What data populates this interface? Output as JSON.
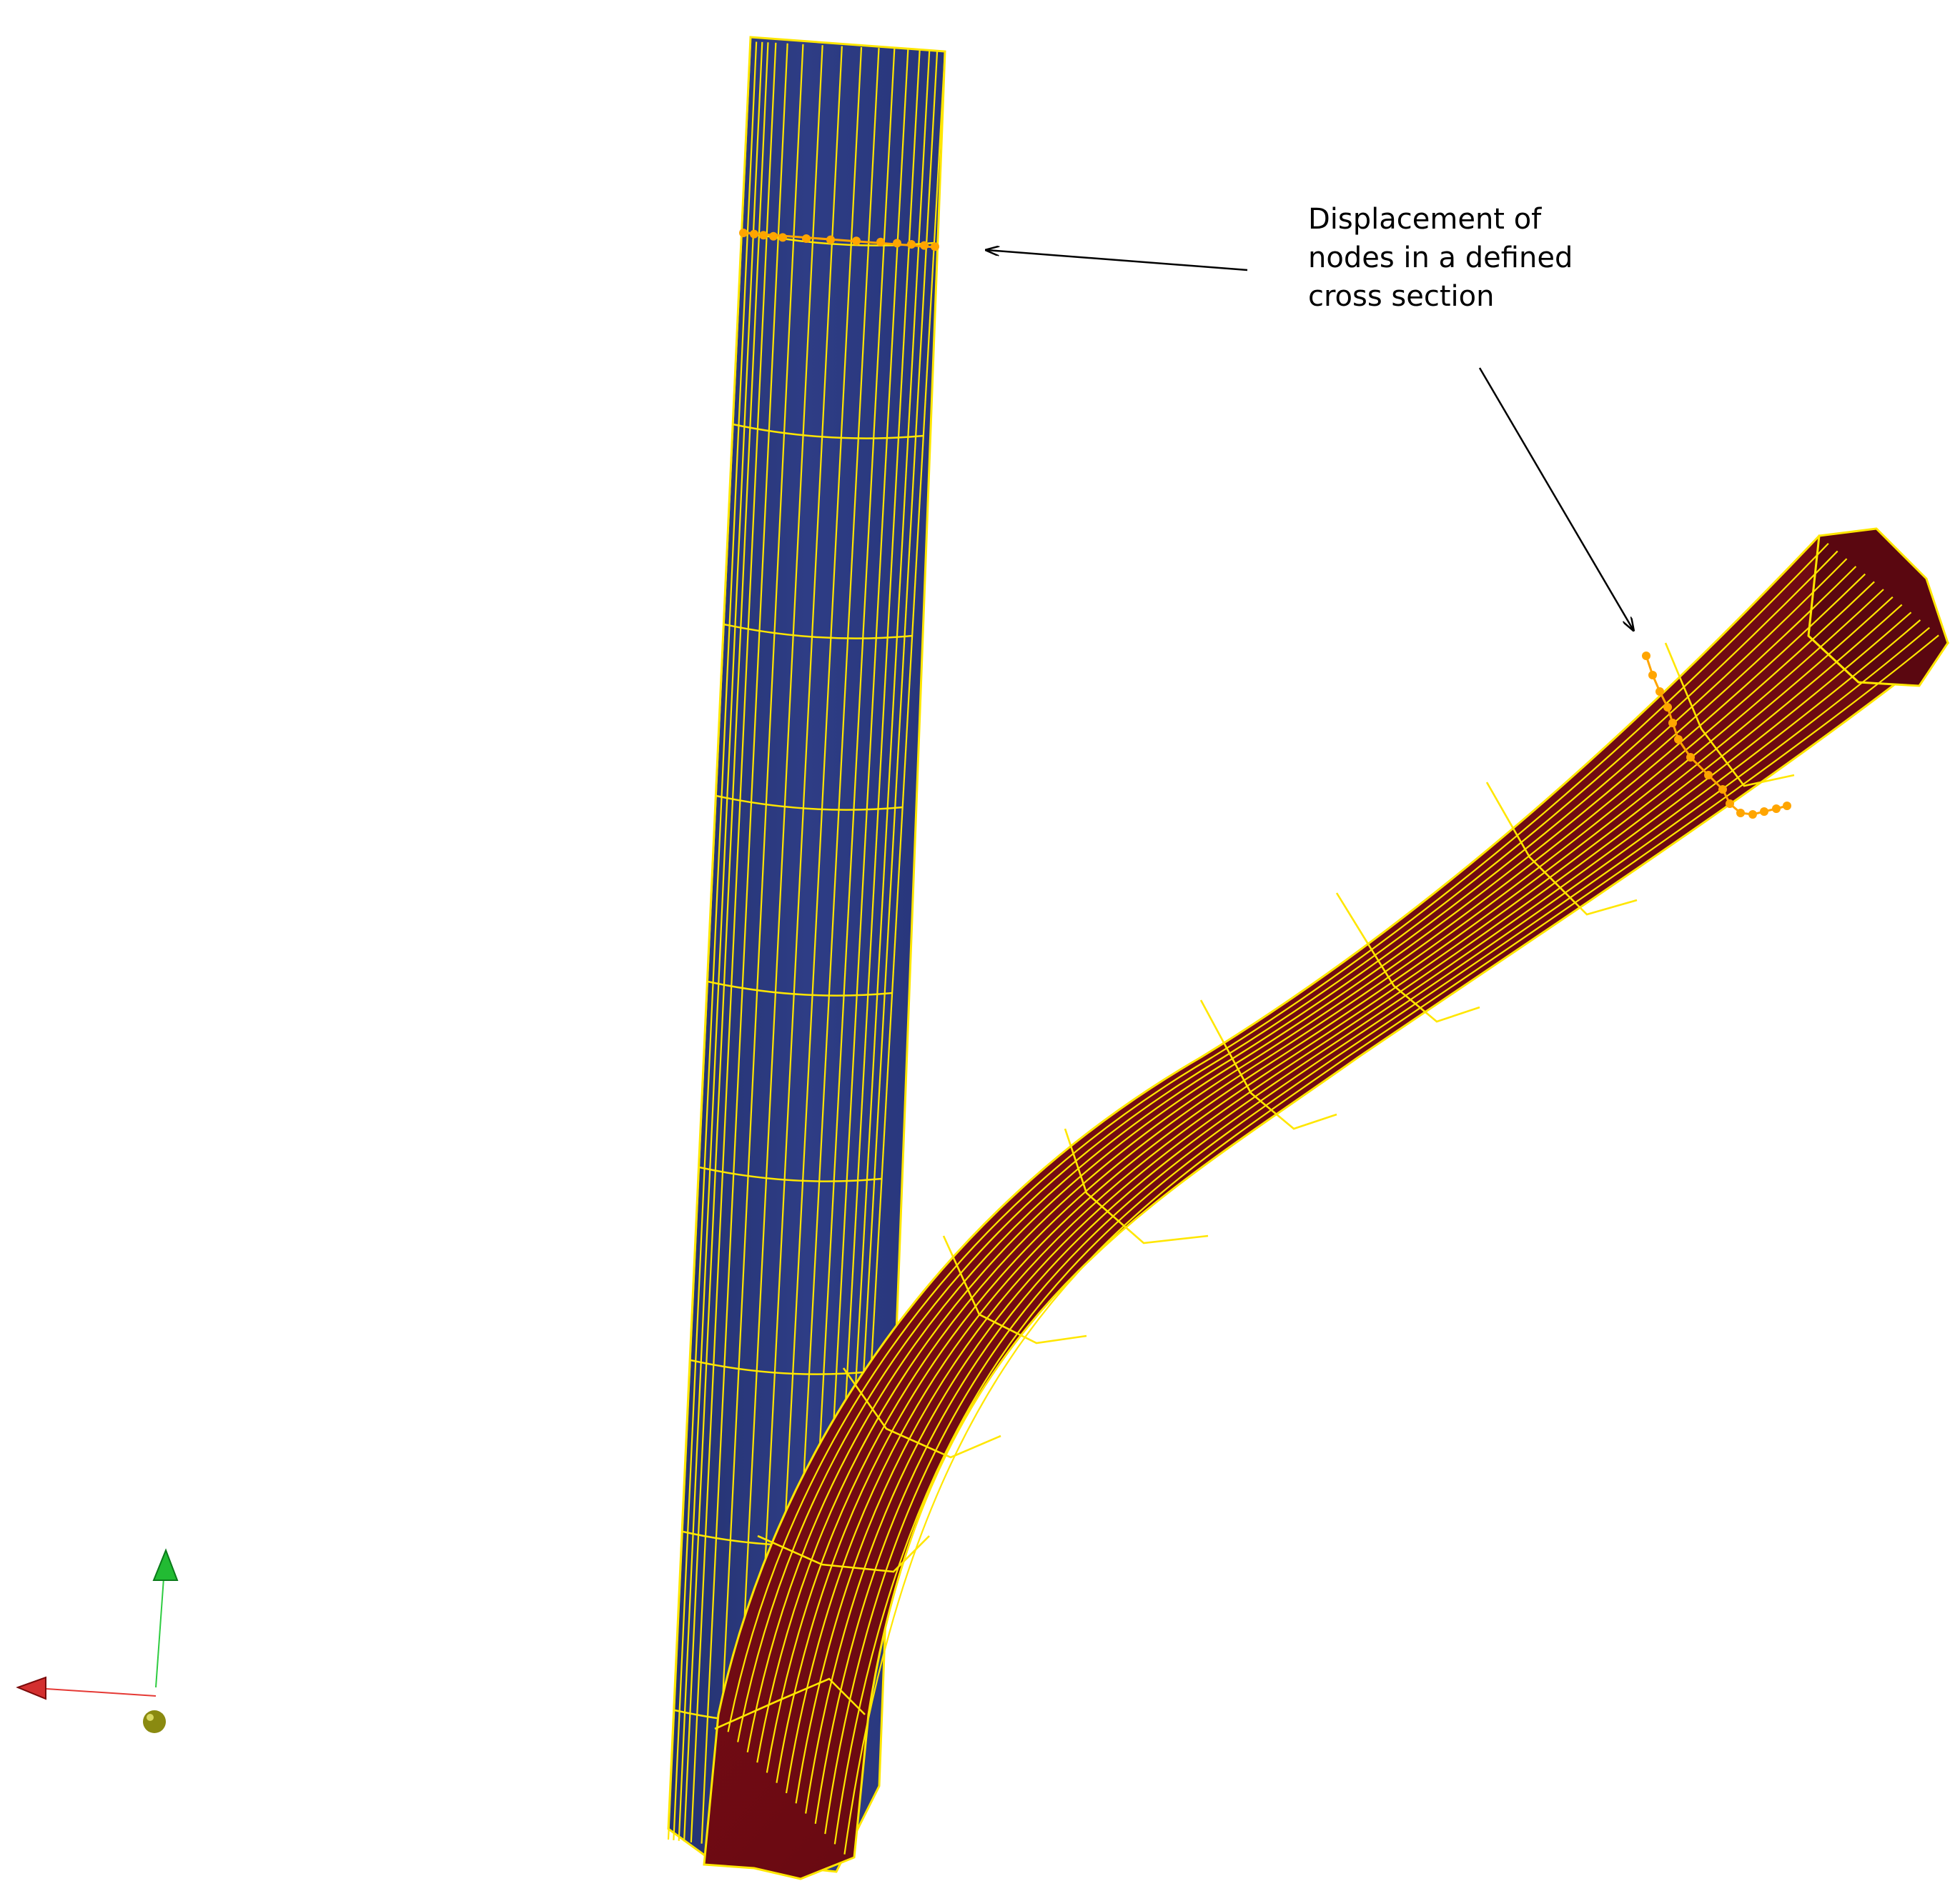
{
  "annotation": {
    "lines": [
      "Displacement of",
      "nodes in a defined",
      "cross section"
    ]
  },
  "colors": {
    "background": "#ffffff",
    "undeformed_fill": "#2b3a7e",
    "deformed_fill": "#7a0c14",
    "deformed_shadow": "#4a0610",
    "mesh_lines": "#ffe600",
    "selected_nodes": "#ffa500",
    "arrow": "#000000",
    "axis_x": "#e53935",
    "axis_y": "#2ecc40",
    "axis_origin": "#8a8a10"
  },
  "icons": {
    "axes": "xyz-axes-triad-icon",
    "origin": "origin-sphere-icon"
  }
}
